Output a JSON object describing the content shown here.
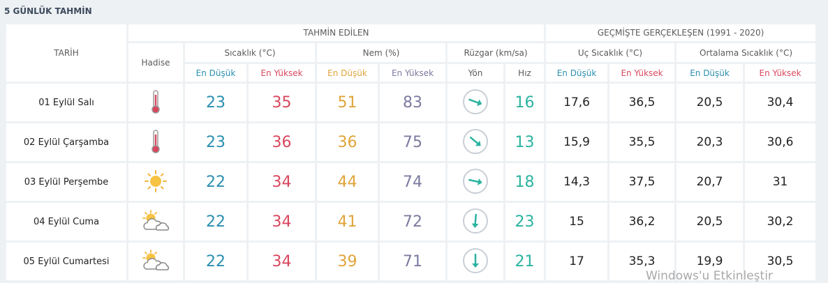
{
  "title": "5 GÜNLÜK TAHMİN",
  "table": {
    "header": {
      "date": "TARİH",
      "forecast": "TAHMİN EDİLEN",
      "past": "GEÇMİŞTE GERÇEKLEŞEN (1991 - 2020)",
      "event": "Hadise",
      "temp": "Sıcaklık (°C)",
      "humidity": "Nem (%)",
      "wind": "Rüzgar (km/sa)",
      "extreme": "Uç Sıcaklık (°C)",
      "average": "Ortalama Sıcaklık (°C)",
      "sub": [
        "En Düşük",
        "En Yüksek",
        "En Düşük",
        "En Yüksek",
        "Yön",
        "Hız",
        "En Düşük",
        "En Yüksek",
        "En Düşük",
        "En Yüksek"
      ]
    },
    "rows": [
      [
        "01 Eylül Salı",
        23,
        35,
        51,
        83,
        16,
        "17,6",
        "36,5",
        "20,5",
        "30,4"
      ],
      [
        "02 Eylül Çarşamba",
        23,
        36,
        36,
        75,
        13,
        "15,9",
        "35,5",
        "20,3",
        "30,6"
      ],
      [
        "03 Eylül Perşembe",
        22,
        34,
        44,
        74,
        18,
        "14,3",
        "37,5",
        "20,7",
        31
      ],
      [
        "04 Eylül Cuma",
        22,
        34,
        41,
        72,
        23,
        15,
        "36,2",
        "20,5",
        "30,2"
      ],
      [
        "05 Eylül Cumartesi",
        22,
        34,
        39,
        71,
        21,
        17,
        "35,3",
        "19,9",
        "30,5"
      ]
    ]
  },
  "watermark": "Windows'u Etkinleştir"
}
